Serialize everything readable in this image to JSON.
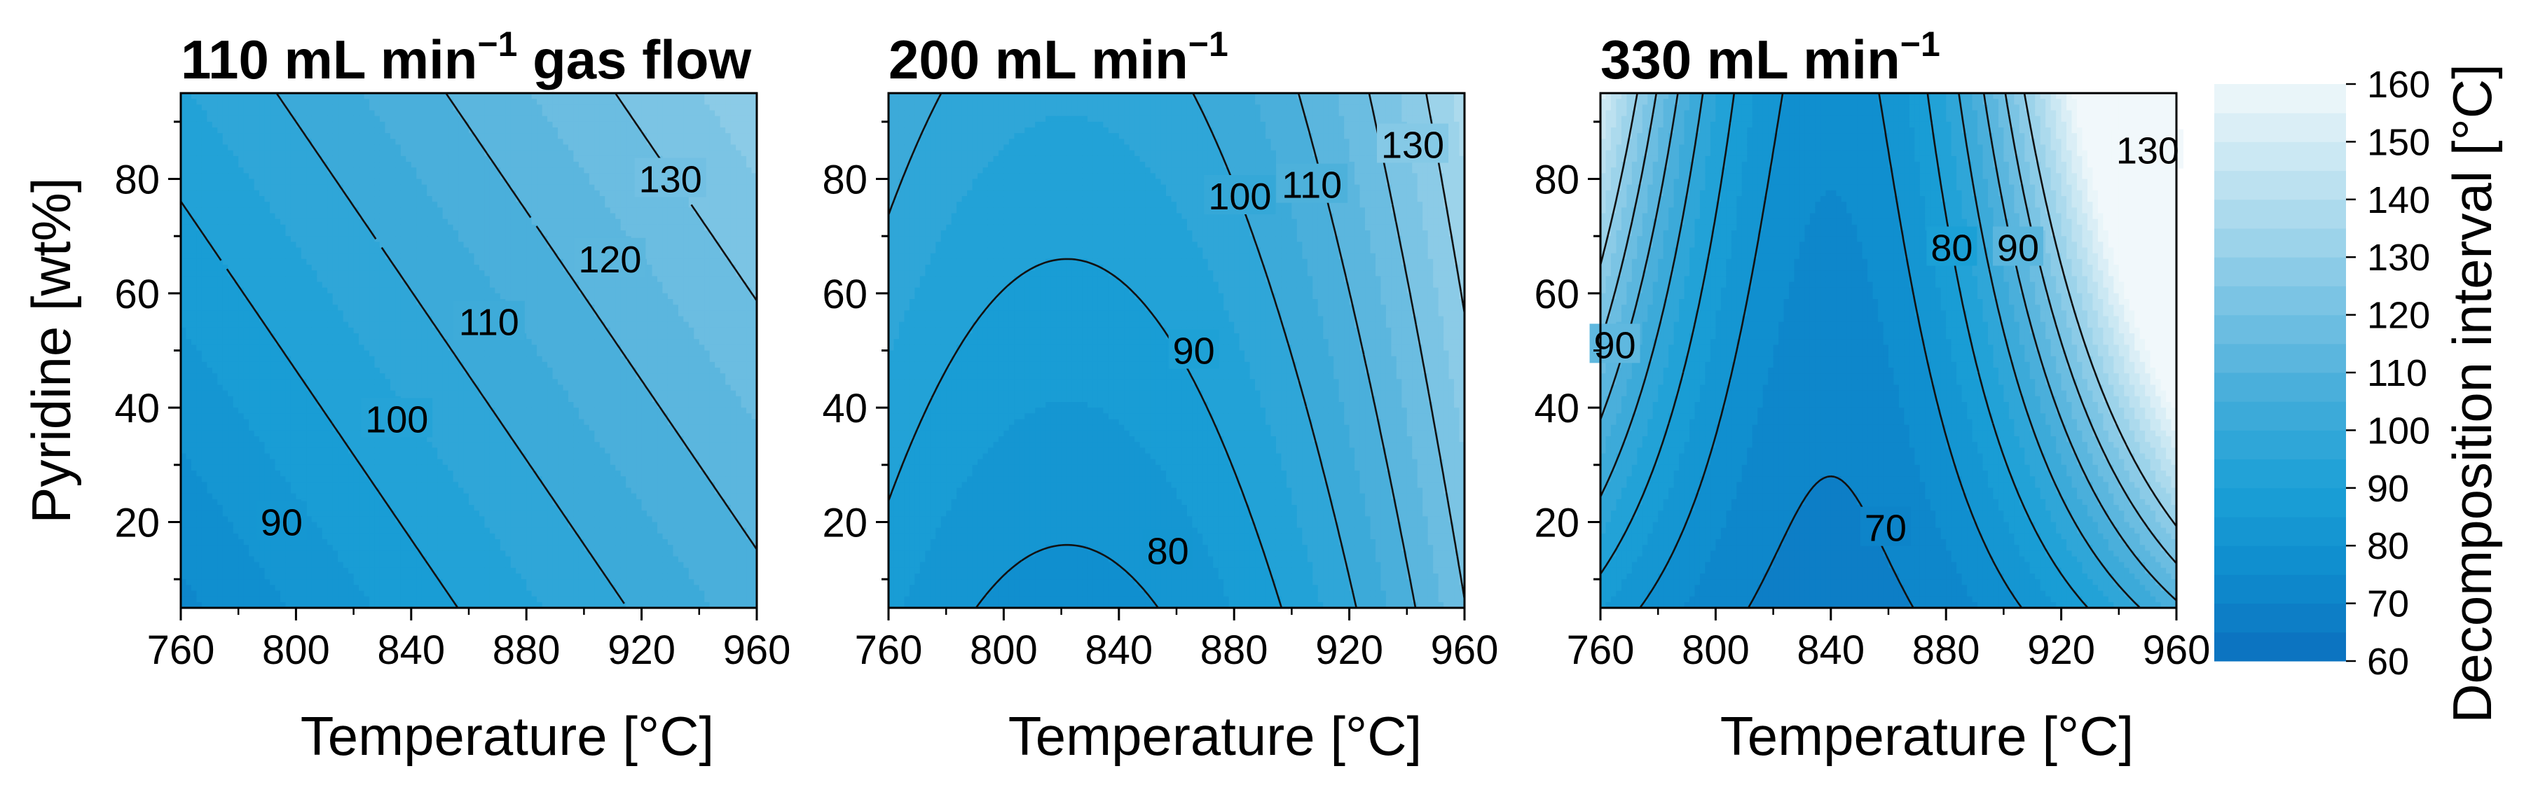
{
  "chart_data": [
    {
      "type": "contour",
      "title_main": "110 mL min",
      "title_sup": "−1",
      "title_tail": " gas flow",
      "xlabel": "Temperature [°C]",
      "ylabel": "Pyridine [wt%]",
      "xlim": [
        760,
        960
      ],
      "ylim": [
        5,
        95
      ],
      "x_ticks": [
        760,
        800,
        840,
        880,
        920,
        960
      ],
      "y_ticks": [
        20,
        40,
        60,
        80
      ],
      "z_range": [
        86,
        140
      ],
      "model": {
        "c": 101,
        "a": 0.17,
        "b": 0.23,
        "d": 0,
        "e": 0,
        "x0": 860,
        "y0": 50
      },
      "contours": [
        {
          "level": 90,
          "label": "90",
          "label_at": [
            795,
            20
          ]
        },
        {
          "level": 100,
          "label": "100",
          "label_at": [
            835,
            38
          ]
        },
        {
          "level": 110,
          "label": "110",
          "label_at": [
            867,
            55
          ]
        },
        {
          "level": 120,
          "label": "120",
          "label_at": [
            909,
            66
          ]
        },
        {
          "level": 130,
          "label": "130",
          "label_at": [
            930,
            80
          ]
        }
      ]
    },
    {
      "type": "contour",
      "title_main": "200 mL min",
      "title_sup": "−1",
      "title_tail": "",
      "xlabel": "Temperature [°C]",
      "ylabel": "",
      "xlim": [
        760,
        960
      ],
      "ylim": [
        5,
        95
      ],
      "x_ticks": [
        760,
        800,
        840,
        880,
        920,
        960
      ],
      "y_ticks": [
        20,
        40,
        60,
        80
      ],
      "z_range": [
        76,
        140
      ],
      "model": {
        "c": 77.8,
        "a": 0,
        "b": 0.2,
        "d": 0.0022,
        "e": 0,
        "x0": 822,
        "y0": 5
      },
      "contours": [
        {
          "level": 80,
          "label": "80",
          "label_at": [
            857,
            15
          ]
        },
        {
          "level": 90,
          "label": "90",
          "label_at": [
            866,
            50
          ]
        },
        {
          "level": 100,
          "label": "100",
          "label_at": [
            882,
            77
          ]
        },
        {
          "level": 110,
          "label": "110",
          "label_at": [
            907,
            79
          ]
        },
        {
          "level": 120,
          "label": "",
          "label_at": [
            0,
            0
          ]
        },
        {
          "level": 130,
          "label": "130",
          "label_at": [
            942,
            86
          ]
        }
      ]
    },
    {
      "type": "contour",
      "title_main": "330 mL min",
      "title_sup": "−1",
      "title_tail": "",
      "xlabel": "Temperature [°C]",
      "ylabel": "",
      "xlim": [
        760,
        960
      ],
      "ylim": [
        5,
        95
      ],
      "x_ticks": [
        760,
        800,
        840,
        880,
        920,
        960
      ],
      "y_ticks": [
        20,
        40,
        60,
        80
      ],
      "z_range": [
        62,
        140
      ],
      "model": {
        "c": 67.7,
        "a": 0,
        "b": 0.1,
        "d": 0.0028,
        "e": 0.0001,
        "x0": 840,
        "y0": 5
      },
      "contours": [
        {
          "level": 70,
          "label": "70",
          "label_at": [
            859,
            19
          ]
        },
        {
          "level": 80,
          "label": "80",
          "label_at": [
            882,
            68
          ]
        },
        {
          "level": 90,
          "label": "90",
          "label_at": [
            905,
            68
          ]
        },
        {
          "level": 100,
          "label": "",
          "label_at": [
            0,
            0
          ]
        },
        {
          "level": 110,
          "label": "",
          "label_at": [
            0,
            0
          ]
        },
        {
          "level": 120,
          "label": "",
          "label_at": [
            0,
            0
          ]
        },
        {
          "level": 130,
          "label": "130",
          "label_at": [
            950,
            85
          ]
        }
      ],
      "extra_labels": [
        {
          "text": "90",
          "at": [
            765,
            51
          ]
        }
      ]
    }
  ],
  "colorbar": {
    "label": "Decomposition interval [°C]",
    "min": 60,
    "max": 160,
    "ticks": [
      60,
      70,
      80,
      90,
      100,
      110,
      120,
      130,
      140,
      150,
      160
    ],
    "color_low": "#0b6fbf",
    "color_mid": "#2aa6d6",
    "color_high": "#f1f8fb"
  }
}
